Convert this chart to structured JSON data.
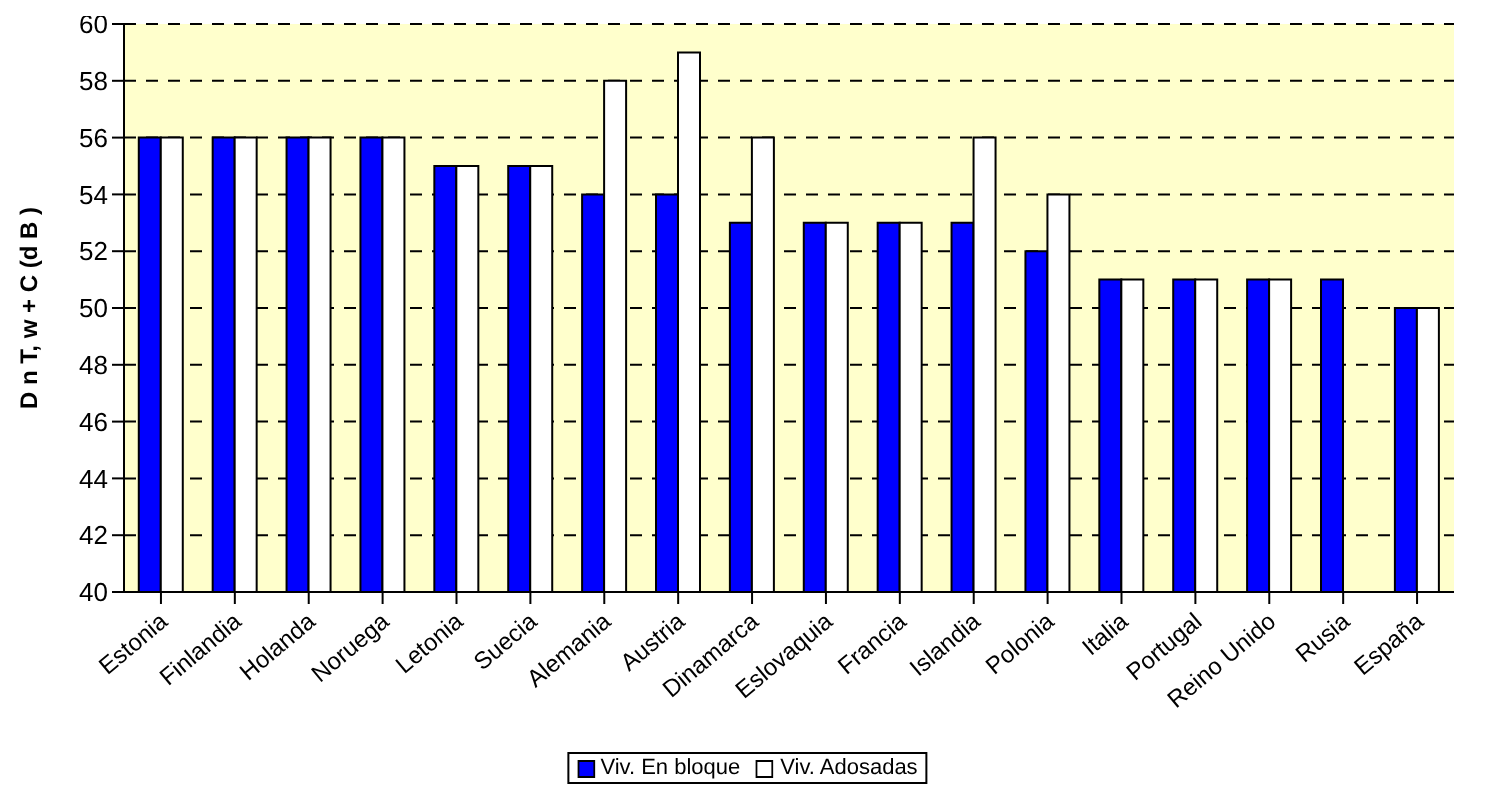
{
  "chart_data": {
    "type": "bar",
    "ylabel": "D n T, w + C (d B )",
    "categories": [
      "Estonia",
      "Finlandia",
      "Holanda",
      "Noruega",
      "Letonia",
      "Suecia",
      "Alemania",
      "Austria",
      "Dinamarca",
      "Eslovaquia",
      "Francia",
      "Islandia",
      "Polonia",
      "Italia",
      "Portugal",
      "Reino Unido",
      "Rusia",
      "España"
    ],
    "series": [
      {
        "name": "Viv. En bloque",
        "color": "#0000ff",
        "values": [
          56,
          56,
          56,
          56,
          55,
          55,
          54,
          54,
          53,
          53,
          53,
          53,
          52,
          51,
          51,
          51,
          51,
          50
        ]
      },
      {
        "name": "Viv. Adosadas",
        "color": "#ffffff",
        "values": [
          56,
          56,
          56,
          56,
          55,
          55,
          58,
          59,
          56,
          53,
          53,
          56,
          54,
          51,
          51,
          51,
          null,
          50
        ]
      }
    ],
    "ylim": [
      40,
      60
    ],
    "yticks": [
      40,
      42,
      44,
      46,
      48,
      50,
      52,
      54,
      56,
      58,
      60
    ],
    "grid": "y",
    "legend": "bottom"
  }
}
